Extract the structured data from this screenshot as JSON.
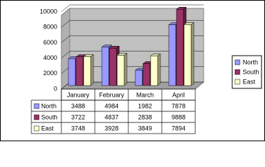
{
  "chart_data": {
    "type": "bar3d",
    "categories": [
      "January",
      "February",
      "March",
      "April"
    ],
    "series": [
      {
        "name": "North",
        "color": "#9999ff",
        "values": [
          3488,
          4984,
          1982,
          7878
        ]
      },
      {
        "name": "South",
        "color": "#993366",
        "values": [
          3722,
          4837,
          2838,
          9888
        ]
      },
      {
        "name": "East",
        "color": "#ffffcc",
        "values": [
          3748,
          3928,
          3849,
          7894
        ]
      }
    ],
    "ylim": [
      0,
      10000
    ],
    "yticks": [
      0,
      2000,
      4000,
      6000,
      8000,
      10000
    ],
    "grid": true,
    "legend": "right",
    "data_table": true
  }
}
